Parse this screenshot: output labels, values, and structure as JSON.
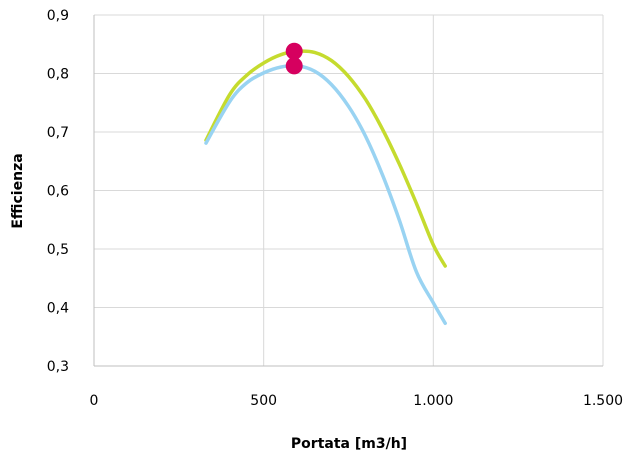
{
  "chart_data": {
    "type": "line",
    "title": "",
    "xlabel": "Portata [m3/h]",
    "ylabel": "Efficienza",
    "xlim": [
      0,
      1500
    ],
    "ylim": [
      0.3,
      0.9
    ],
    "x_ticks": [
      0,
      500,
      1000,
      1500
    ],
    "x_tick_labels": [
      "0",
      "500",
      "1.000",
      "1.500"
    ],
    "y_ticks": [
      0.3,
      0.4,
      0.5,
      0.6,
      0.7,
      0.8,
      0.9
    ],
    "y_tick_labels": [
      "0,3",
      "0,4",
      "0,5",
      "0,6",
      "0,7",
      "0,8",
      "0,9"
    ],
    "grid": true,
    "legend": "none",
    "series": [
      {
        "color": "#C5DB2E",
        "x": [
          330,
          400,
          450,
          500,
          550,
          600,
          650,
          700,
          750,
          800,
          850,
          900,
          950,
          1000,
          1035
        ],
        "y": [
          0.686,
          0.764,
          0.797,
          0.818,
          0.832,
          0.838,
          0.836,
          0.822,
          0.795,
          0.756,
          0.705,
          0.645,
          0.578,
          0.507,
          0.471
        ]
      },
      {
        "color": "#99D3F2",
        "x": [
          330,
          400,
          450,
          500,
          550,
          600,
          650,
          700,
          750,
          800,
          850,
          900,
          950,
          1000,
          1035
        ],
        "y": [
          0.681,
          0.752,
          0.784,
          0.801,
          0.811,
          0.813,
          0.804,
          0.781,
          0.744,
          0.693,
          0.627,
          0.549,
          0.461,
          0.408,
          0.373
        ]
      }
    ],
    "points": [
      {
        "x": 590,
        "y": 0.838,
        "color": "#D6005F"
      },
      {
        "x": 590,
        "y": 0.813,
        "color": "#D6005F"
      }
    ]
  }
}
